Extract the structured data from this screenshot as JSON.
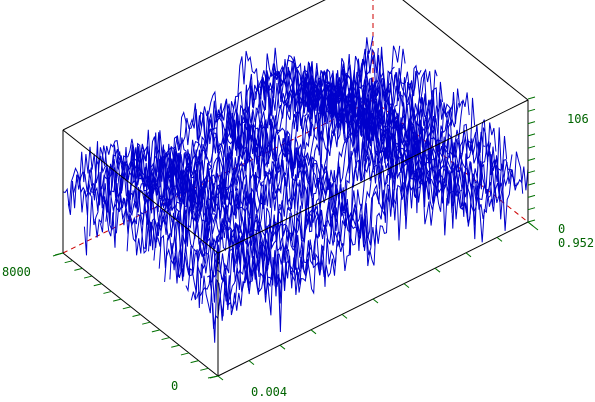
{
  "chart_data": {
    "type": "surface3d",
    "title": "",
    "xlabel": "",
    "ylabel": "",
    "zlabel": "",
    "x_range": [
      0.004,
      0.952
    ],
    "y_range": [
      0,
      8000
    ],
    "z_range": [
      0,
      106
    ],
    "tick_labels": {
      "x_min": "0.004",
      "x_max": "0.952",
      "y_min": "0",
      "y_max": "8000",
      "z_min": "0",
      "z_max": "106"
    },
    "series_count": 30,
    "style": "waterfall wireframe",
    "grid": false,
    "legend": "none"
  },
  "colors": {
    "surface": "#0000cc",
    "axes": "#000000",
    "ticks": "#007000",
    "tick_labels": "#006400",
    "hidden_axes": "#cc0000"
  }
}
